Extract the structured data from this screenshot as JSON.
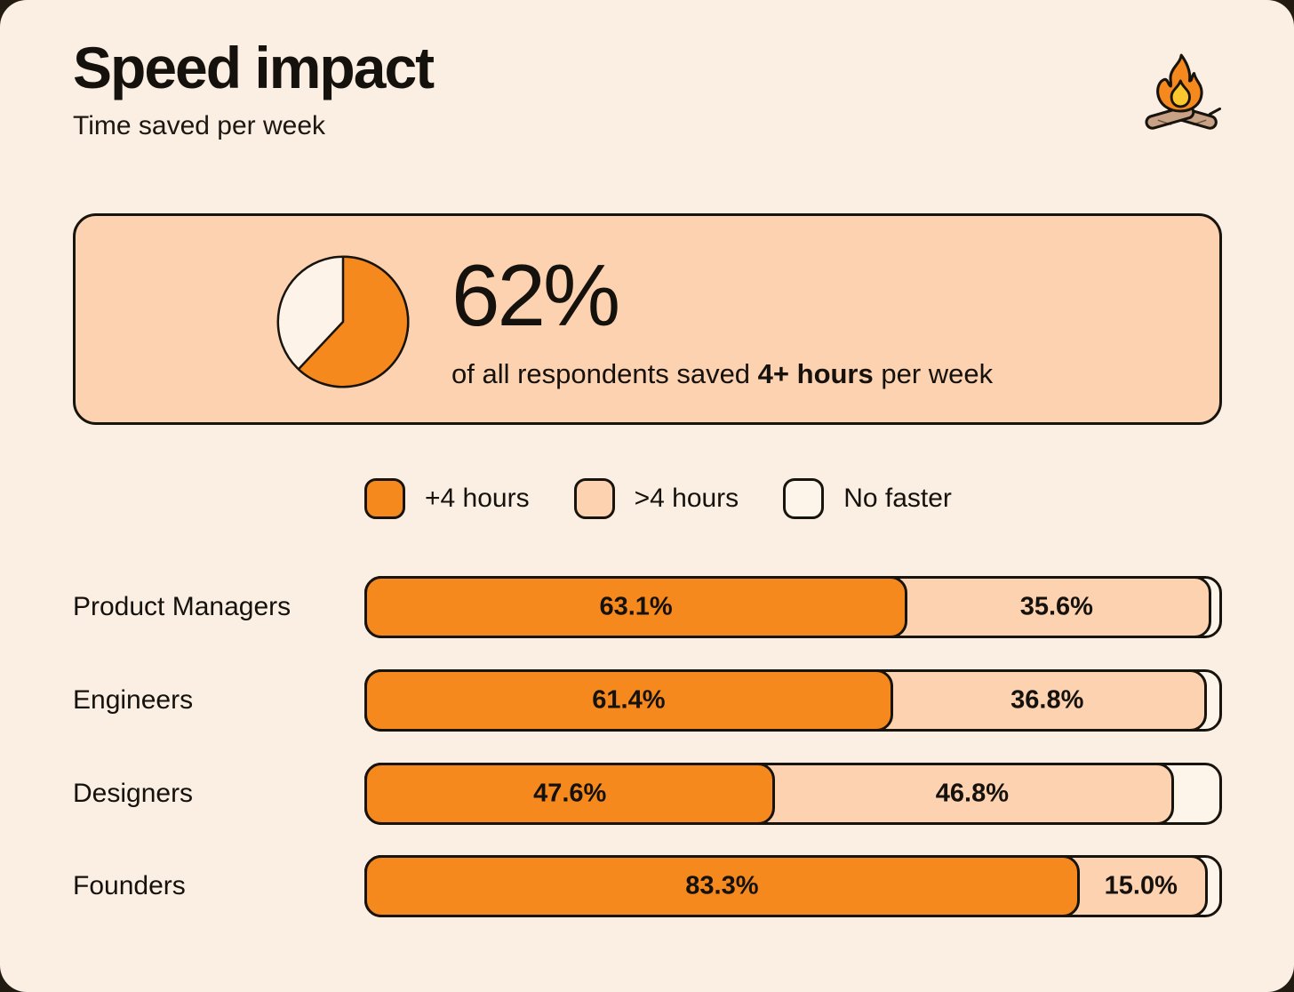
{
  "page": {
    "title": "Speed impact",
    "subtitle": "Time saved per week",
    "header_icon": "campfire-icon"
  },
  "colors": {
    "outer_background": "#221b11",
    "card_background": "#fbeee2",
    "accent_orange": "#f6891e",
    "peach": "#fcd2b0",
    "cream": "#fdf4ea",
    "ink": "#17130d",
    "log_brown": "#c8a284",
    "flame_yellow": "#fcc62f"
  },
  "stat": {
    "value": "62%",
    "pie_pct": 62,
    "line_prefix": "of all respondents saved ",
    "line_bold": "4+ hours",
    "line_suffix": " per week"
  },
  "legend": [
    {
      "label": "+4 hours",
      "color": "#f6891e"
    },
    {
      "label": ">4 hours",
      "color": "#fcd2b0"
    },
    {
      "label": "No faster",
      "color": "#fdf4ea"
    }
  ],
  "chart_data": {
    "type": "bar",
    "orientation": "horizontal",
    "stacked": true,
    "unit": "percent",
    "xlim": [
      0,
      100
    ],
    "grid": false,
    "legend_position": "top",
    "title": "Speed impact",
    "subtitle": "Time saved per week",
    "categories": [
      "Product Managers",
      "Engineers",
      "Designers",
      "Founders"
    ],
    "series": [
      {
        "name": "+4 hours",
        "color": "#f6891e",
        "values": [
          63.1,
          61.4,
          47.6,
          83.3
        ]
      },
      {
        "name": ">4 hours",
        "color": "#fcd2b0",
        "values": [
          35.6,
          36.8,
          46.8,
          15.0
        ]
      },
      {
        "name": "No faster",
        "color": "#fdf4ea",
        "values": [
          1.3,
          1.8,
          5.6,
          1.7
        ]
      }
    ],
    "rows": [
      {
        "label": "Product Managers",
        "plus4": 63.1,
        "under4": 35.6,
        "plus4_label": "63.1%",
        "under4_label": "35.6%"
      },
      {
        "label": "Engineers",
        "plus4": 61.4,
        "under4": 36.8,
        "plus4_label": "61.4%",
        "under4_label": "36.8%"
      },
      {
        "label": "Designers",
        "plus4": 47.6,
        "under4": 46.8,
        "plus4_label": "47.6%",
        "under4_label": "46.8%"
      },
      {
        "label": "Founders",
        "plus4": 83.3,
        "under4": 15.0,
        "plus4_label": "83.3%",
        "under4_label": "15.0%"
      }
    ]
  }
}
